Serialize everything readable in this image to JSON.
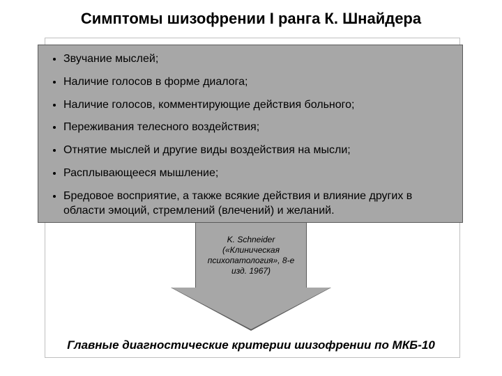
{
  "title": "Симптомы шизофрении I ранга К. Шнайдера",
  "symptoms": {
    "items": [
      "Звучание мыслей;",
      " Наличие голосов в форме диалога;",
      "Наличие голосов, комментирующие действия больного;",
      "Переживания телесного воздействия;",
      "Отнятие мыслей и другие виды воздействия на мысли;",
      "Расплывающееся мышление;",
      "Бредовое восприятие, а также всякие действия и влияние других в области эмоций, стремлений (влечений) и желаний."
    ]
  },
  "citation": "K. Schneider («Клиническая психопатология», 8-е изд. 1967)",
  "footer": "Главные диагностические критерии шизофрении по МКБ-10",
  "style": {
    "box_bg": "#a7a7a7",
    "box_border": "#5a5a5a",
    "page_bg": "#ffffff",
    "title_fontsize": 22,
    "bullet_fontsize": 16,
    "citation_fontsize": 12,
    "footer_fontsize": 17
  }
}
